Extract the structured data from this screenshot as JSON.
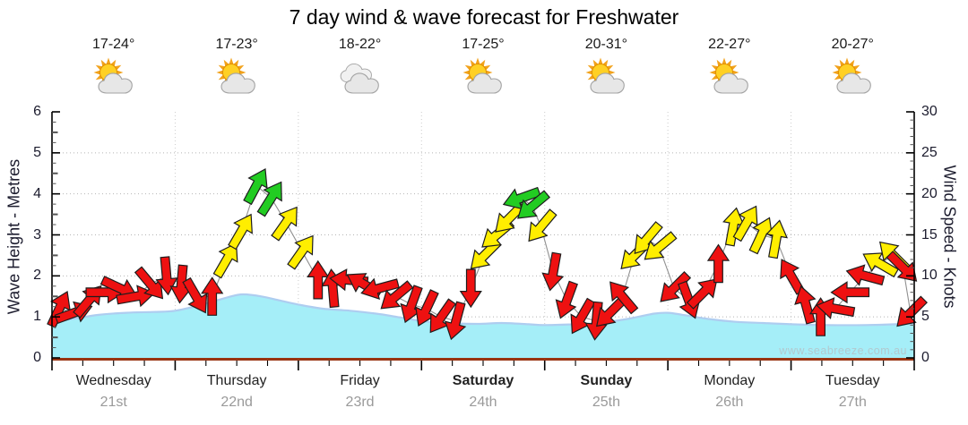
{
  "header": {
    "title": "7 day wind & wave forecast for Freshwater"
  },
  "watermark": "www.seabreeze.com.au",
  "forecast": {
    "days": [
      {
        "name": "Wednesday",
        "date": "21st",
        "temp": "17-24°",
        "icon": "partly-cloudy-icon",
        "emphasis": false
      },
      {
        "name": "Thursday",
        "date": "22nd",
        "temp": "17-23°",
        "icon": "partly-cloudy-icon",
        "emphasis": false
      },
      {
        "name": "Friday",
        "date": "23rd",
        "temp": "18-22°",
        "icon": "cloudy-icon",
        "emphasis": false
      },
      {
        "name": "Saturday",
        "date": "24th",
        "temp": "17-25°",
        "icon": "partly-cloudy-icon",
        "emphasis": true
      },
      {
        "name": "Sunday",
        "date": "25th",
        "temp": "20-31°",
        "icon": "partly-cloudy-icon",
        "emphasis": true
      },
      {
        "name": "Monday",
        "date": "26th",
        "temp": "22-27°",
        "icon": "partly-cloudy-icon",
        "emphasis": false
      },
      {
        "name": "Tuesday",
        "date": "27th",
        "temp": "20-27°",
        "icon": "partly-cloudy-icon",
        "emphasis": false
      }
    ]
  },
  "chart_data": {
    "type": "area+wind_arrows",
    "title": "7 day wind & wave forecast for Freshwater",
    "x_axis": {
      "unit": "days",
      "range": [
        0,
        7
      ],
      "minor_tick_step_days": 0.25
    },
    "left_axis": {
      "label": "Wave Height - Metres",
      "range": [
        0,
        6
      ],
      "major_ticks": [
        0,
        1,
        2,
        3,
        4,
        5,
        6
      ]
    },
    "right_axis": {
      "label": "Wind Speed - Knots",
      "range": [
        0,
        30
      ],
      "major_ticks": [
        0,
        5,
        10,
        15,
        20,
        25,
        30
      ]
    },
    "grid": {
      "horizontal_dotted": true,
      "vertical_dotted_day_boundaries": true,
      "legend": "none"
    },
    "wave_height_series": {
      "name": "Wave Height (metres)",
      "points": [
        {
          "day": 0.0,
          "m": 0.9
        },
        {
          "day": 0.16,
          "m": 0.95
        },
        {
          "day": 0.38,
          "m": 1.05
        },
        {
          "day": 0.6,
          "m": 1.1
        },
        {
          "day": 0.82,
          "m": 1.12
        },
        {
          "day": 1.0,
          "m": 1.15
        },
        {
          "day": 1.22,
          "m": 1.3
        },
        {
          "day": 1.43,
          "m": 1.48
        },
        {
          "day": 1.55,
          "m": 1.55
        },
        {
          "day": 1.7,
          "m": 1.5
        },
        {
          "day": 1.85,
          "m": 1.4
        },
        {
          "day": 2.0,
          "m": 1.3
        },
        {
          "day": 2.2,
          "m": 1.2
        },
        {
          "day": 2.42,
          "m": 1.15
        },
        {
          "day": 2.63,
          "m": 1.08
        },
        {
          "day": 2.8,
          "m": 1.0
        },
        {
          "day": 3.0,
          "m": 0.9
        },
        {
          "day": 3.2,
          "m": 0.85
        },
        {
          "day": 3.45,
          "m": 0.83
        },
        {
          "day": 3.65,
          "m": 0.85
        },
        {
          "day": 3.87,
          "m": 0.82
        },
        {
          "day": 4.0,
          "m": 0.8
        },
        {
          "day": 4.25,
          "m": 0.82
        },
        {
          "day": 4.45,
          "m": 0.85
        },
        {
          "day": 4.67,
          "m": 0.95
        },
        {
          "day": 4.89,
          "m": 1.08
        },
        {
          "day": 5.0,
          "m": 1.1
        },
        {
          "day": 5.12,
          "m": 1.05
        },
        {
          "day": 5.33,
          "m": 0.95
        },
        {
          "day": 5.55,
          "m": 0.88
        },
        {
          "day": 5.77,
          "m": 0.85
        },
        {
          "day": 6.0,
          "m": 0.82
        },
        {
          "day": 6.3,
          "m": 0.8
        },
        {
          "day": 6.6,
          "m": 0.8
        },
        {
          "day": 6.85,
          "m": 0.82
        },
        {
          "day": 7.0,
          "m": 0.85
        }
      ]
    },
    "wind_series": {
      "name": "Wind Speed (knots)",
      "arrows": [
        {
          "day": 0.06,
          "kn": 6.0,
          "dir_deg": 25,
          "color": "red"
        },
        {
          "day": 0.18,
          "kn": 5.5,
          "dir_deg": 70,
          "color": "red"
        },
        {
          "day": 0.3,
          "kn": 7.0,
          "dir_deg": 40,
          "color": "red"
        },
        {
          "day": 0.43,
          "kn": 8.0,
          "dir_deg": 90,
          "color": "red"
        },
        {
          "day": 0.55,
          "kn": 8.5,
          "dir_deg": 115,
          "color": "red"
        },
        {
          "day": 0.68,
          "kn": 7.5,
          "dir_deg": 80,
          "color": "red"
        },
        {
          "day": 0.8,
          "kn": 9.0,
          "dir_deg": 140,
          "color": "red"
        },
        {
          "day": 0.93,
          "kn": 10.0,
          "dir_deg": 175,
          "color": "red"
        },
        {
          "day": 1.05,
          "kn": 9.0,
          "dir_deg": 185,
          "color": "red"
        },
        {
          "day": 1.17,
          "kn": 7.5,
          "dir_deg": 150,
          "color": "red"
        },
        {
          "day": 1.3,
          "kn": 7.5,
          "dir_deg": 0,
          "color": "red"
        },
        {
          "day": 1.42,
          "kn": 12.0,
          "dir_deg": 30,
          "color": "yellow"
        },
        {
          "day": 1.54,
          "kn": 15.5,
          "dir_deg": 30,
          "color": "yellow"
        },
        {
          "day": 1.66,
          "kn": 21.0,
          "dir_deg": 28,
          "color": "green"
        },
        {
          "day": 1.78,
          "kn": 19.5,
          "dir_deg": 32,
          "color": "green"
        },
        {
          "day": 1.9,
          "kn": 16.5,
          "dir_deg": 35,
          "color": "yellow"
        },
        {
          "day": 2.03,
          "kn": 13.0,
          "dir_deg": 35,
          "color": "yellow"
        },
        {
          "day": 2.16,
          "kn": 9.5,
          "dir_deg": 0,
          "color": "red"
        },
        {
          "day": 2.28,
          "kn": 8.5,
          "dir_deg": 355,
          "color": "red"
        },
        {
          "day": 2.41,
          "kn": 9.5,
          "dir_deg": 275,
          "color": "red"
        },
        {
          "day": 2.53,
          "kn": 9.0,
          "dir_deg": 300,
          "color": "red"
        },
        {
          "day": 2.66,
          "kn": 8.5,
          "dir_deg": 255,
          "color": "red"
        },
        {
          "day": 2.79,
          "kn": 7.5,
          "dir_deg": 230,
          "color": "red"
        },
        {
          "day": 2.92,
          "kn": 6.5,
          "dir_deg": 200,
          "color": "red"
        },
        {
          "day": 3.04,
          "kn": 6.0,
          "dir_deg": 205,
          "color": "red"
        },
        {
          "day": 3.16,
          "kn": 5.0,
          "dir_deg": 215,
          "color": "red"
        },
        {
          "day": 3.28,
          "kn": 4.5,
          "dir_deg": 195,
          "color": "red"
        },
        {
          "day": 3.4,
          "kn": 8.5,
          "dir_deg": 180,
          "color": "red"
        },
        {
          "day": 3.51,
          "kn": 12.5,
          "dir_deg": 225,
          "color": "yellow"
        },
        {
          "day": 3.61,
          "kn": 15.0,
          "dir_deg": 230,
          "color": "yellow"
        },
        {
          "day": 3.71,
          "kn": 17.0,
          "dir_deg": 225,
          "color": "yellow"
        },
        {
          "day": 3.81,
          "kn": 19.5,
          "dir_deg": 250,
          "color": "green"
        },
        {
          "day": 3.9,
          "kn": 18.5,
          "dir_deg": 230,
          "color": "green"
        },
        {
          "day": 3.97,
          "kn": 16.0,
          "dir_deg": 220,
          "color": "yellow"
        },
        {
          "day": 4.07,
          "kn": 10.5,
          "dir_deg": 190,
          "color": "red"
        },
        {
          "day": 4.18,
          "kn": 7.0,
          "dir_deg": 200,
          "color": "red"
        },
        {
          "day": 4.3,
          "kn": 5.0,
          "dir_deg": 210,
          "color": "red"
        },
        {
          "day": 4.42,
          "kn": 4.5,
          "dir_deg": 185,
          "color": "red"
        },
        {
          "day": 4.53,
          "kn": 5.5,
          "dir_deg": 225,
          "color": "red"
        },
        {
          "day": 4.63,
          "kn": 7.5,
          "dir_deg": 320,
          "color": "red"
        },
        {
          "day": 4.73,
          "kn": 12.5,
          "dir_deg": 225,
          "color": "yellow"
        },
        {
          "day": 4.83,
          "kn": 14.5,
          "dir_deg": 220,
          "color": "yellow"
        },
        {
          "day": 4.93,
          "kn": 13.5,
          "dir_deg": 230,
          "color": "yellow"
        },
        {
          "day": 5.05,
          "kn": 8.5,
          "dir_deg": 225,
          "color": "red"
        },
        {
          "day": 5.17,
          "kn": 7.0,
          "dir_deg": 160,
          "color": "red"
        },
        {
          "day": 5.29,
          "kn": 8.0,
          "dir_deg": 45,
          "color": "red"
        },
        {
          "day": 5.41,
          "kn": 11.5,
          "dir_deg": 0,
          "color": "red"
        },
        {
          "day": 5.53,
          "kn": 16.0,
          "dir_deg": 10,
          "color": "yellow"
        },
        {
          "day": 5.64,
          "kn": 16.5,
          "dir_deg": 30,
          "color": "yellow"
        },
        {
          "day": 5.76,
          "kn": 15.0,
          "dir_deg": 25,
          "color": "yellow"
        },
        {
          "day": 5.88,
          "kn": 14.5,
          "dir_deg": 10,
          "color": "yellow"
        },
        {
          "day": 6.0,
          "kn": 10.0,
          "dir_deg": 330,
          "color": "red"
        },
        {
          "day": 6.12,
          "kn": 6.5,
          "dir_deg": 345,
          "color": "red"
        },
        {
          "day": 6.24,
          "kn": 5.0,
          "dir_deg": 0,
          "color": "red"
        },
        {
          "day": 6.36,
          "kn": 6.0,
          "dir_deg": 280,
          "color": "red"
        },
        {
          "day": 6.48,
          "kn": 8.0,
          "dir_deg": 270,
          "color": "red"
        },
        {
          "day": 6.6,
          "kn": 10.0,
          "dir_deg": 285,
          "color": "red"
        },
        {
          "day": 6.72,
          "kn": 11.5,
          "dir_deg": 300,
          "color": "yellow"
        },
        {
          "day": 6.83,
          "kn": 12.5,
          "dir_deg": 315,
          "color": "yellow"
        },
        {
          "day": 6.91,
          "kn": 11.0,
          "dir_deg": 135,
          "color": "red"
        },
        {
          "day": 6.97,
          "kn": 5.5,
          "dir_deg": 225,
          "color": "red"
        }
      ]
    },
    "colors": {
      "wave_fill": "#a5eef8",
      "wave_edge": "#aecdf0",
      "arrow_red": "#ee1111",
      "arrow_yellow": "#ffee00",
      "arrow_green": "#22cc22",
      "arrow_outline": "#1d1d1d",
      "connector": "#909090",
      "axis": "#000000",
      "baseline": "#993311",
      "grid_dotted": "#b5b5b5",
      "day_grid_dotted": "#cccccc",
      "date_text": "#9a9a9a",
      "watermark_text": "#b2c9cf",
      "sun": "#ffd024",
      "sun_rays": "#f2a21b",
      "cloud": "#e7e7e7",
      "cloud_outline": "#a3a3a3"
    }
  }
}
